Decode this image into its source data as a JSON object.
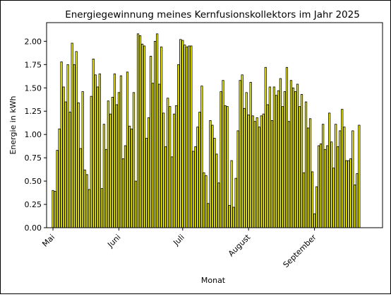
{
  "chart_data": {
    "type": "bar",
    "title": "Energiegewinnung meines Kernfusionskollektors im Jahr 2025",
    "xlabel": "Monat",
    "ylabel": "Energie in kWh",
    "x_start": "2025-05-01",
    "x_end": "2025-09-30",
    "xlim": [
      "2025-04-28",
      "2025-10-03"
    ],
    "ylim": [
      0,
      2.2
    ],
    "yticks": [
      0.0,
      0.25,
      0.5,
      0.75,
      1.0,
      1.25,
      1.5,
      1.75,
      2.0
    ],
    "ytick_labels": [
      "0.00",
      "0.25",
      "0.50",
      "0.75",
      "1.00",
      "1.25",
      "1.50",
      "1.75",
      "2.00"
    ],
    "xticks": [
      "2025-05-01",
      "2025-06-01",
      "2025-07-01",
      "2025-08-01",
      "2025-09-01"
    ],
    "xtick_labels": [
      "Mai",
      "Juni",
      "Juli",
      "August",
      "September"
    ],
    "bar_color": "#ffff00",
    "edge_color": "#000000",
    "grid": false,
    "values": [
      0.4,
      0.39,
      0.83,
      1.06,
      1.78,
      1.51,
      1.35,
      1.75,
      1.24,
      1.98,
      1.75,
      1.89,
      1.34,
      0.85,
      1.46,
      0.62,
      0.57,
      0.41,
      1.41,
      1.81,
      1.64,
      1.51,
      1.65,
      0.42,
      1.11,
      0.84,
      1.36,
      1.22,
      1.4,
      1.65,
      1.32,
      1.45,
      1.63,
      0.74,
      0.88,
      1.67,
      1.09,
      1.06,
      1.45,
      0.5,
      2.08,
      2.06,
      1.97,
      1.95,
      0.96,
      1.18,
      1.84,
      1.55,
      2.0,
      2.08,
      1.54,
      1.94,
      1.23,
      0.87,
      1.39,
      1.3,
      0.76,
      1.22,
      1.31,
      1.75,
      2.02,
      2.01,
      1.96,
      1.94,
      1.95,
      1.95,
      0.82,
      0.87,
      1.08,
      1.24,
      1.52,
      0.59,
      0.56,
      0.26,
      1.15,
      1.1,
      0.96,
      0.79,
      0.48,
      1.46,
      1.58,
      1.31,
      1.3,
      0.24,
      0.72,
      0.22,
      0.53,
      1.04,
      1.58,
      1.64,
      1.28,
      1.45,
      1.21,
      1.56,
      1.2,
      1.14,
      1.18,
      1.08,
      1.2,
      1.22,
      1.72,
      1.32,
      1.51,
      1.15,
      1.51,
      1.42,
      1.47,
      1.6,
      1.3,
      1.46,
      1.72,
      1.14,
      1.58,
      1.5,
      1.46,
      1.54,
      1.3,
      1.43,
      0.59,
      1.35,
      1.07,
      1.17,
      0.6,
      0.15,
      0.44,
      0.88,
      0.9,
      1.11,
      0.84,
      0.88,
      1.23,
      0.92,
      0.64,
      1.11,
      0.87,
      1.04,
      1.27,
      1.08,
      0.72,
      0.72,
      0.74,
      1.04,
      0.46,
      0.58,
      1.1
    ]
  }
}
